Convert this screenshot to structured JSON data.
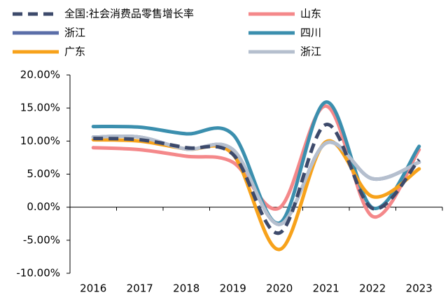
{
  "chart_data": {
    "type": "line",
    "categories": [
      "2016",
      "2017",
      "2018",
      "2019",
      "2020",
      "2021",
      "2022",
      "2023"
    ],
    "series": [
      {
        "name": "全国:社会消费品零售增长率",
        "color": "#3d4a6b",
        "dashed": true,
        "values": [
          10.4,
          10.2,
          9.0,
          8.0,
          -3.9,
          12.5,
          -0.2,
          7.2
        ]
      },
      {
        "name": "山东",
        "color": "#f4888a",
        "values": [
          9.0,
          8.7,
          7.7,
          6.8,
          -0.1,
          15.3,
          -1.4,
          8.7
        ]
      },
      {
        "name": "浙江",
        "color": "#5b6ea8",
        "values": [
          10.6,
          10.6,
          8.8,
          8.7,
          -2.6,
          9.7,
          4.3,
          6.8
        ]
      },
      {
        "name": "四川",
        "color": "#3b8fae",
        "values": [
          12.2,
          12.1,
          11.1,
          11.0,
          -2.4,
          15.9,
          -0.1,
          9.2
        ]
      },
      {
        "name": "广东",
        "color": "#f7a21b",
        "values": [
          10.2,
          10.0,
          8.8,
          8.0,
          -6.4,
          9.9,
          1.6,
          5.8
        ]
      },
      {
        "name": "浙江",
        "color": "#b5bfce",
        "values": [
          10.6,
          10.6,
          8.8,
          8.7,
          -2.6,
          9.7,
          4.3,
          6.8
        ]
      }
    ],
    "ylim": [
      -10,
      20
    ],
    "yticks": [
      {
        "value": -10,
        "label": "-10.00%"
      },
      {
        "value": -5,
        "label": "-5.00%"
      },
      {
        "value": 0,
        "label": "0.00%"
      },
      {
        "value": 5,
        "label": "5.00%"
      },
      {
        "value": 10,
        "label": "10.00%"
      },
      {
        "value": 15,
        "label": "15.00%"
      },
      {
        "value": 20,
        "label": "20.00%"
      }
    ],
    "legend": "top",
    "grid": false
  }
}
